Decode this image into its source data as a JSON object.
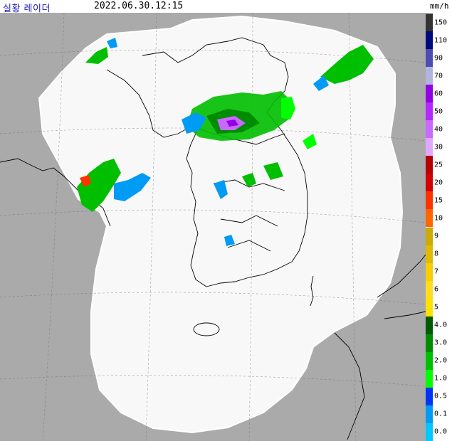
{
  "header": {
    "title": "실황 레이더",
    "timestamp": "2022.06.30.12:15",
    "unit": "mm/h"
  },
  "colors": {
    "sea_outside": "#aaaaaa",
    "coverage": "#f8f8f8",
    "coastline": "#000000",
    "outer_border": "#ffffff",
    "grid": "#555555"
  },
  "legend": {
    "items": [
      {
        "label": "150",
        "color": "#333333"
      },
      {
        "label": "110",
        "color": "#000a7a"
      },
      {
        "label": "90",
        "color": "#4c4eb1"
      },
      {
        "label": "70",
        "color": "#b3b4de"
      },
      {
        "label": "60",
        "color": "#9300e4"
      },
      {
        "label": "50",
        "color": "#b329ff"
      },
      {
        "label": "40",
        "color": "#c969ff"
      },
      {
        "label": "30",
        "color": "#e0a9ff"
      },
      {
        "label": "25",
        "color": "#b40000"
      },
      {
        "label": "20",
        "color": "#d20000"
      },
      {
        "label": "15",
        "color": "#ff3200"
      },
      {
        "label": "10",
        "color": "#ff6600"
      },
      {
        "label": "9",
        "color": "#ccaa00"
      },
      {
        "label": "8",
        "color": "#e0b900"
      },
      {
        "label": "7",
        "color": "#f9cd00"
      },
      {
        "label": "6",
        "color": "#ffdc1f"
      },
      {
        "label": "5",
        "color": "#ffe100"
      },
      {
        "label": "4.0",
        "color": "#005a00"
      },
      {
        "label": "3.0",
        "color": "#008c00"
      },
      {
        "label": "2.0",
        "color": "#00be00"
      },
      {
        "label": "1.0",
        "color": "#00ff00"
      },
      {
        "label": "0.5",
        "color": "#0033f5"
      },
      {
        "label": "0.1",
        "color": "#009bf5"
      },
      {
        "label": "0.0",
        "color": "#00c8ff"
      }
    ]
  }
}
